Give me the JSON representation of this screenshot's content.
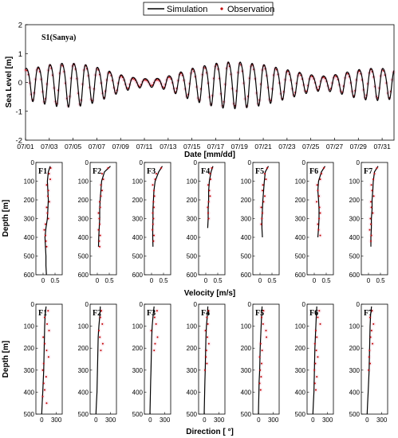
{
  "legend": {
    "simulation": "Simulation",
    "observation": "Observation"
  },
  "colors": {
    "simulation": "#000000",
    "observation": "#c00000",
    "observation_band": "#f7c8d8"
  },
  "chart_data": [
    {
      "type": "line",
      "panel_label": "S1(Sanya)",
      "xlabel": "Date [mm/dd]",
      "ylabel": "Sea Level [m]",
      "ylim": [
        -2,
        2
      ],
      "yticks": [
        -2,
        -1,
        0,
        1,
        2
      ],
      "xlim": [
        1,
        32
      ],
      "xtick_labels": [
        "07/01",
        "07/03",
        "07/05",
        "07/07",
        "07/09",
        "07/11",
        "07/13",
        "07/15",
        "07/17",
        "07/19",
        "07/21",
        "07/23",
        "07/25",
        "07/27",
        "07/29",
        "07/31"
      ],
      "xtick_values": [
        1,
        3,
        5,
        7,
        9,
        11,
        13,
        15,
        17,
        19,
        21,
        23,
        25,
        27,
        29,
        31
      ],
      "grid": false,
      "legend_position": "top-center",
      "series": [
        {
          "name": "Simulation",
          "style": "line",
          "tidal_period_days": 1.0,
          "amplitude_m": [
            0.55,
            0.6,
            0.7,
            0.75,
            0.75,
            0.7,
            0.6,
            0.45,
            0.3,
            0.2,
            0.15,
            0.15,
            0.25,
            0.4,
            0.55,
            0.65,
            0.75,
            0.8,
            0.8,
            0.75,
            0.7,
            0.6,
            0.5,
            0.4,
            0.3,
            0.25,
            0.3,
            0.4,
            0.5,
            0.55,
            0.55,
            0.5
          ]
        },
        {
          "name": "Observation",
          "style": "dots",
          "tidal_period_days": 1.0,
          "amplitude_m": [
            0.5,
            0.55,
            0.65,
            0.7,
            0.72,
            0.65,
            0.55,
            0.4,
            0.25,
            0.15,
            0.1,
            0.1,
            0.2,
            0.35,
            0.5,
            0.6,
            0.7,
            0.75,
            0.75,
            0.7,
            0.65,
            0.55,
            0.45,
            0.35,
            0.25,
            0.2,
            0.25,
            0.35,
            0.45,
            0.5,
            0.5,
            0.45
          ]
        }
      ]
    },
    {
      "type": "line",
      "group": "velocity",
      "xlabel": "Velocity [m/s]",
      "ylabel": "Depth [m]",
      "xlim": [
        -0.3,
        0.8
      ],
      "xticks": [
        0,
        0.5
      ],
      "ylim": [
        600,
        0
      ],
      "yticks": [
        0,
        100,
        200,
        300,
        400,
        500,
        600
      ],
      "panels": [
        {
          "label": "F1",
          "sim": {
            "depth": [
              20,
              50,
              100,
              150,
              200,
              250,
              300,
              350,
              400,
              450,
              500,
              550,
              600
            ],
            "value": [
              0.3,
              0.22,
              0.18,
              0.2,
              0.22,
              0.2,
              0.18,
              0.12,
              0.08,
              0.1,
              0.12,
              0.12,
              0.14
            ]
          },
          "obs": {
            "depth": [
              30,
              60,
              90,
              120,
              150,
              180,
              210,
              240,
              270,
              300,
              330,
              360,
              390,
              420,
              450
            ],
            "value": [
              0.32,
              0.25,
              0.3,
              0.15,
              0.22,
              0.2,
              0.26,
              0.15,
              0.18,
              0.22,
              0.1,
              0.05,
              0.1,
              0.12,
              0.15
            ]
          }
        },
        {
          "label": "F2",
          "sim": {
            "depth": [
              20,
              50,
              100,
              150,
              200,
              250,
              300,
              350,
              400,
              450
            ],
            "value": [
              0.55,
              0.3,
              0.18,
              0.15,
              0.12,
              0.1,
              0.1,
              0.08,
              0.06,
              0.05
            ]
          },
          "obs": {
            "depth": [
              30,
              60,
              90,
              120,
              150,
              180,
              210,
              240,
              270,
              300,
              330,
              360,
              390,
              420,
              450
            ],
            "value": [
              0.45,
              0.2,
              0.25,
              0.15,
              0.2,
              0.15,
              0.1,
              0.12,
              0.05,
              0.08,
              0.1,
              0.05,
              0.12,
              0.08,
              0.1
            ]
          }
        },
        {
          "label": "F3",
          "sim": {
            "depth": [
              20,
              50,
              100,
              150,
              200,
              250,
              300,
              350,
              400,
              450
            ],
            "value": [
              0.45,
              0.3,
              0.15,
              0.1,
              0.08,
              0.06,
              0.06,
              0.05,
              0.05,
              0.06
            ]
          },
          "obs": {
            "depth": [
              30,
              60,
              90,
              120,
              150,
              180,
              210,
              240,
              270,
              300,
              330,
              360,
              390,
              420
            ],
            "value": [
              0.4,
              0.2,
              0.15,
              0.05,
              0.1,
              0.12,
              0.08,
              0.1,
              0.05,
              0.08,
              0.06,
              0.04,
              0.1,
              0.08
            ]
          }
        },
        {
          "label": "F4",
          "sim": {
            "depth": [
              20,
              50,
              100,
              150,
              200,
              250,
              300,
              350
            ],
            "value": [
              0.3,
              0.22,
              0.15,
              0.12,
              0.12,
              0.1,
              0.1,
              0.08
            ]
          },
          "obs": {
            "depth": [
              30,
              60,
              90,
              120,
              150,
              180,
              210,
              240,
              270,
              300
            ],
            "value": [
              0.25,
              0.18,
              0.2,
              0.1,
              0.15,
              0.18,
              0.12,
              0.08,
              0.1,
              0.12
            ]
          }
        },
        {
          "label": "F5",
          "sim": {
            "depth": [
              20,
              50,
              100,
              150,
              200,
              250,
              300,
              350,
              400
            ],
            "value": [
              0.35,
              0.22,
              0.18,
              0.15,
              0.12,
              0.1,
              0.08,
              0.08,
              0.1
            ]
          },
          "obs": {
            "depth": [
              30,
              60,
              90,
              120,
              150,
              180,
              210,
              240,
              270,
              300,
              330
            ],
            "value": [
              0.3,
              0.2,
              0.25,
              0.12,
              0.1,
              0.2,
              0.15,
              0.05,
              0.1,
              0.08,
              0.05
            ]
          }
        },
        {
          "label": "F6",
          "sim": {
            "depth": [
              20,
              50,
              100,
              150,
              200,
              250,
              300,
              350,
              400
            ],
            "value": [
              0.45,
              0.3,
              0.18,
              0.15,
              0.18,
              0.2,
              0.2,
              0.18,
              0.15
            ]
          },
          "obs": {
            "depth": [
              30,
              60,
              90,
              120,
              150,
              180,
              210,
              240,
              270,
              300,
              330,
              360,
              390
            ],
            "value": [
              0.4,
              0.3,
              0.25,
              0.12,
              0.15,
              0.2,
              0.1,
              0.22,
              0.25,
              0.2,
              0.15,
              0.18,
              0.25
            ]
          }
        },
        {
          "label": "F7",
          "sim": {
            "depth": [
              20,
              50,
              100,
              150,
              200,
              250,
              300,
              350,
              400,
              450
            ],
            "value": [
              0.4,
              0.25,
              0.2,
              0.18,
              0.15,
              0.15,
              0.12,
              0.12,
              0.1,
              0.1
            ]
          },
          "obs": {
            "depth": [
              30,
              60,
              90,
              120,
              150,
              180,
              210,
              240,
              270,
              300,
              330,
              360,
              390,
              420
            ],
            "value": [
              0.35,
              0.25,
              0.2,
              0.12,
              0.15,
              0.22,
              0.1,
              0.12,
              0.18,
              0.08,
              0.1,
              0.05,
              0.12,
              0.1
            ]
          }
        }
      ]
    },
    {
      "type": "line",
      "group": "direction",
      "xlabel": "Direction [ °]",
      "ylabel": "Depth [m]",
      "xlim": [
        -120,
        420
      ],
      "xticks": [
        0,
        300
      ],
      "ylim": [
        500,
        0
      ],
      "yticks": [
        0,
        100,
        200,
        300,
        400,
        500
      ],
      "panels": [
        {
          "label": "F1",
          "sim": {
            "depth": [
              10,
              50,
              100,
              150,
              200,
              250,
              300,
              350,
              400,
              450,
              500
            ],
            "value": [
              90,
              70,
              60,
              55,
              50,
              45,
              40,
              30,
              20,
              10,
              0
            ]
          },
          "obs": {
            "depth": [
              30,
              60,
              90,
              120,
              150,
              180,
              210,
              240,
              270,
              300,
              330,
              360,
              390,
              420,
              450
            ],
            "value": [
              130,
              60,
              110,
              150,
              30,
              60,
              100,
              140,
              40,
              20,
              90,
              40,
              60,
              20,
              100
            ]
          }
        },
        {
          "label": "F2",
          "sim": {
            "depth": [
              10,
              50,
              100,
              150,
              200,
              250,
              300,
              350,
              400,
              450,
              500
            ],
            "value": [
              90,
              80,
              60,
              45,
              40,
              35,
              30,
              25,
              20,
              10,
              0
            ]
          },
          "obs": {
            "depth": [
              30,
              60,
              90,
              120,
              150,
              180,
              210
            ],
            "value": [
              110,
              90,
              130,
              60,
              80,
              140,
              100
            ]
          }
        },
        {
          "label": "F3",
          "sim": {
            "depth": [
              10,
              50,
              100,
              150,
              200,
              250,
              300,
              350,
              400,
              450,
              500
            ],
            "value": [
              80,
              60,
              40,
              30,
              25,
              20,
              15,
              10,
              5,
              0,
              -5
            ]
          },
          "obs": {
            "depth": [
              30,
              60,
              90,
              120,
              150,
              180,
              210
            ],
            "value": [
              140,
              90,
              120,
              20,
              150,
              100,
              80
            ]
          }
        },
        {
          "label": "F4",
          "sim": {
            "depth": [
              10,
              50,
              100,
              150,
              200,
              250,
              300,
              350,
              400,
              450,
              500
            ],
            "value": [
              70,
              60,
              40,
              30,
              25,
              20,
              15,
              10,
              5,
              0,
              -5
            ]
          },
          "obs": {
            "depth": [
              30,
              60,
              90,
              120,
              150,
              180,
              210,
              240,
              270,
              300
            ],
            "value": [
              80,
              50,
              70,
              20,
              60,
              90,
              40,
              30,
              50,
              10
            ]
          }
        },
        {
          "label": "F5",
          "sim": {
            "depth": [
              10,
              50,
              100,
              150,
              200,
              250,
              300,
              350,
              400,
              450,
              500
            ],
            "value": [
              70,
              60,
              50,
              40,
              30,
              25,
              20,
              10,
              5,
              0,
              -5
            ]
          },
          "obs": {
            "depth": [
              30,
              60,
              90,
              120,
              150,
              180,
              210,
              240,
              270,
              300,
              330,
              360,
              390
            ],
            "value": [
              100,
              60,
              90,
              150,
              160,
              40,
              70,
              20,
              60,
              30,
              50,
              20,
              40
            ]
          }
        },
        {
          "label": "F6",
          "sim": {
            "depth": [
              10,
              50,
              100,
              150,
              200,
              250,
              300,
              350,
              400,
              450,
              500
            ],
            "value": [
              80,
              70,
              60,
              50,
              40,
              35,
              30,
              25,
              20,
              10,
              0
            ]
          },
          "obs": {
            "depth": [
              30,
              60,
              90,
              120,
              150,
              180,
              210,
              240,
              270,
              300,
              330,
              360,
              390
            ],
            "value": [
              130,
              100,
              150,
              60,
              80,
              40,
              70,
              100,
              50,
              30,
              80,
              40,
              60
            ]
          }
        },
        {
          "label": "F7",
          "sim": {
            "depth": [
              10,
              50,
              100,
              150,
              200,
              250,
              300,
              350,
              400,
              450,
              500
            ],
            "value": [
              90,
              70,
              60,
              55,
              50,
              45,
              40,
              30,
              20,
              10,
              0
            ]
          },
          "obs": {
            "depth": [
              30,
              60,
              90,
              120,
              150,
              180,
              210,
              240,
              270,
              300
            ],
            "value": [
              100,
              60,
              130,
              90,
              70,
              110,
              50,
              40,
              60,
              30
            ]
          }
        }
      ]
    }
  ]
}
